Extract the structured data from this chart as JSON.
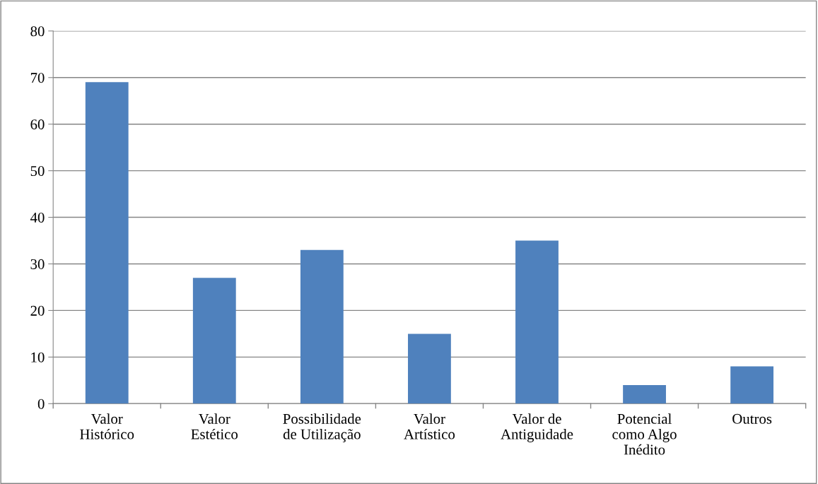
{
  "chart_data": {
    "type": "bar",
    "categories": [
      "Valor\nHistórico",
      "Valor\nEstético",
      "Possibilidade\nde Utilização",
      "Valor\nArtístico",
      "Valor de\nAntiguidade",
      "Potencial\ncomo Algo\nInédito",
      "Outros"
    ],
    "values": [
      69,
      27,
      33,
      15,
      35,
      4,
      8
    ],
    "color": "#4f81bd",
    "ylim": [
      0,
      80
    ],
    "yticks": [
      0,
      10,
      20,
      30,
      40,
      50,
      60,
      70,
      80
    ],
    "grid": "y",
    "legend": false
  }
}
